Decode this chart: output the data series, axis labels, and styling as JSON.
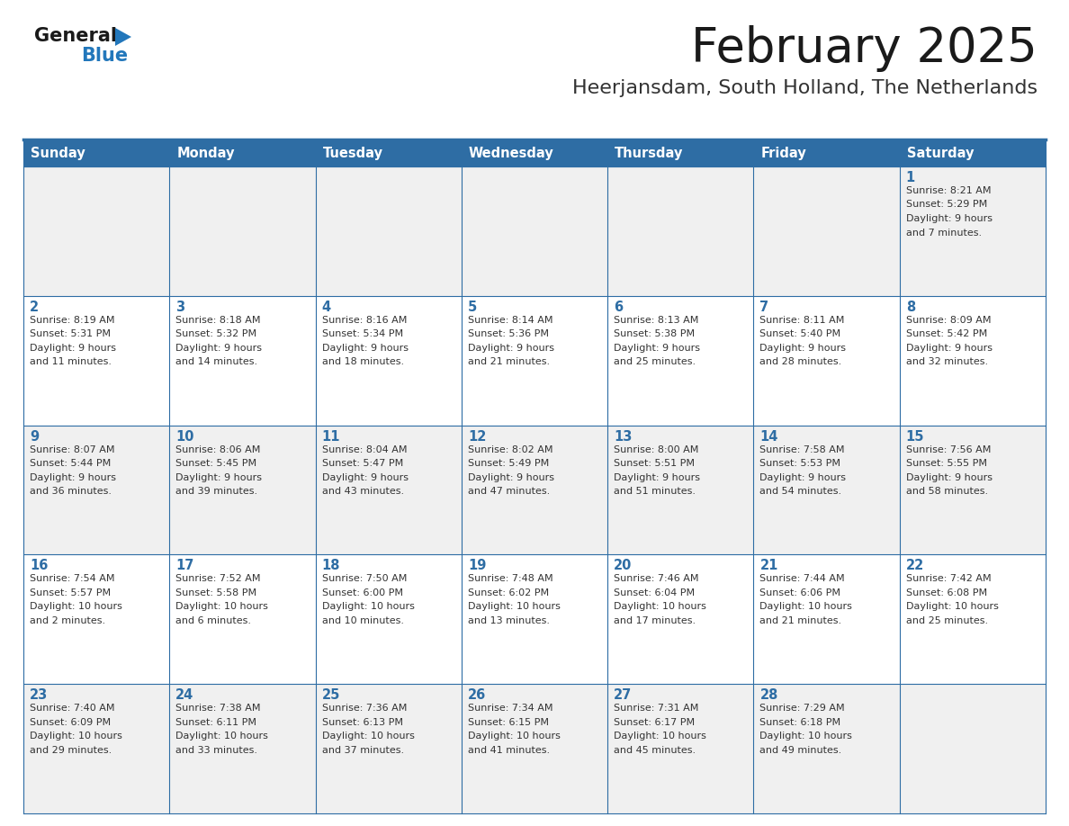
{
  "title": "February 2025",
  "subtitle": "Heerjansdam, South Holland, The Netherlands",
  "header_bg": "#2e6da4",
  "header_text": "#ffffff",
  "odd_row_bg": "#f0f0f0",
  "even_row_bg": "#ffffff",
  "border_color": "#2e6da4",
  "day_headers": [
    "Sunday",
    "Monday",
    "Tuesday",
    "Wednesday",
    "Thursday",
    "Friday",
    "Saturday"
  ],
  "title_color": "#1a1a1a",
  "subtitle_color": "#333333",
  "cell_text_color": "#333333",
  "day_num_color": "#2e6da4",
  "logo_general_color": "#1a1a1a",
  "logo_blue_color": "#2277bb",
  "calendar_data": [
    [
      {
        "day": null,
        "sunrise": null,
        "sunset": null,
        "daylight": null
      },
      {
        "day": null,
        "sunrise": null,
        "sunset": null,
        "daylight": null
      },
      {
        "day": null,
        "sunrise": null,
        "sunset": null,
        "daylight": null
      },
      {
        "day": null,
        "sunrise": null,
        "sunset": null,
        "daylight": null
      },
      {
        "day": null,
        "sunrise": null,
        "sunset": null,
        "daylight": null
      },
      {
        "day": null,
        "sunrise": null,
        "sunset": null,
        "daylight": null
      },
      {
        "day": 1,
        "sunrise": "8:21 AM",
        "sunset": "5:29 PM",
        "daylight": "9 hours and 7 minutes."
      }
    ],
    [
      {
        "day": 2,
        "sunrise": "8:19 AM",
        "sunset": "5:31 PM",
        "daylight": "9 hours and 11 minutes."
      },
      {
        "day": 3,
        "sunrise": "8:18 AM",
        "sunset": "5:32 PM",
        "daylight": "9 hours and 14 minutes."
      },
      {
        "day": 4,
        "sunrise": "8:16 AM",
        "sunset": "5:34 PM",
        "daylight": "9 hours and 18 minutes."
      },
      {
        "day": 5,
        "sunrise": "8:14 AM",
        "sunset": "5:36 PM",
        "daylight": "9 hours and 21 minutes."
      },
      {
        "day": 6,
        "sunrise": "8:13 AM",
        "sunset": "5:38 PM",
        "daylight": "9 hours and 25 minutes."
      },
      {
        "day": 7,
        "sunrise": "8:11 AM",
        "sunset": "5:40 PM",
        "daylight": "9 hours and 28 minutes."
      },
      {
        "day": 8,
        "sunrise": "8:09 AM",
        "sunset": "5:42 PM",
        "daylight": "9 hours and 32 minutes."
      }
    ],
    [
      {
        "day": 9,
        "sunrise": "8:07 AM",
        "sunset": "5:44 PM",
        "daylight": "9 hours and 36 minutes."
      },
      {
        "day": 10,
        "sunrise": "8:06 AM",
        "sunset": "5:45 PM",
        "daylight": "9 hours and 39 minutes."
      },
      {
        "day": 11,
        "sunrise": "8:04 AM",
        "sunset": "5:47 PM",
        "daylight": "9 hours and 43 minutes."
      },
      {
        "day": 12,
        "sunrise": "8:02 AM",
        "sunset": "5:49 PM",
        "daylight": "9 hours and 47 minutes."
      },
      {
        "day": 13,
        "sunrise": "8:00 AM",
        "sunset": "5:51 PM",
        "daylight": "9 hours and 51 minutes."
      },
      {
        "day": 14,
        "sunrise": "7:58 AM",
        "sunset": "5:53 PM",
        "daylight": "9 hours and 54 minutes."
      },
      {
        "day": 15,
        "sunrise": "7:56 AM",
        "sunset": "5:55 PM",
        "daylight": "9 hours and 58 minutes."
      }
    ],
    [
      {
        "day": 16,
        "sunrise": "7:54 AM",
        "sunset": "5:57 PM",
        "daylight": "10 hours and 2 minutes."
      },
      {
        "day": 17,
        "sunrise": "7:52 AM",
        "sunset": "5:58 PM",
        "daylight": "10 hours and 6 minutes."
      },
      {
        "day": 18,
        "sunrise": "7:50 AM",
        "sunset": "6:00 PM",
        "daylight": "10 hours and 10 minutes."
      },
      {
        "day": 19,
        "sunrise": "7:48 AM",
        "sunset": "6:02 PM",
        "daylight": "10 hours and 13 minutes."
      },
      {
        "day": 20,
        "sunrise": "7:46 AM",
        "sunset": "6:04 PM",
        "daylight": "10 hours and 17 minutes."
      },
      {
        "day": 21,
        "sunrise": "7:44 AM",
        "sunset": "6:06 PM",
        "daylight": "10 hours and 21 minutes."
      },
      {
        "day": 22,
        "sunrise": "7:42 AM",
        "sunset": "6:08 PM",
        "daylight": "10 hours and 25 minutes."
      }
    ],
    [
      {
        "day": 23,
        "sunrise": "7:40 AM",
        "sunset": "6:09 PM",
        "daylight": "10 hours and 29 minutes."
      },
      {
        "day": 24,
        "sunrise": "7:38 AM",
        "sunset": "6:11 PM",
        "daylight": "10 hours and 33 minutes."
      },
      {
        "day": 25,
        "sunrise": "7:36 AM",
        "sunset": "6:13 PM",
        "daylight": "10 hours and 37 minutes."
      },
      {
        "day": 26,
        "sunrise": "7:34 AM",
        "sunset": "6:15 PM",
        "daylight": "10 hours and 41 minutes."
      },
      {
        "day": 27,
        "sunrise": "7:31 AM",
        "sunset": "6:17 PM",
        "daylight": "10 hours and 45 minutes."
      },
      {
        "day": 28,
        "sunrise": "7:29 AM",
        "sunset": "6:18 PM",
        "daylight": "10 hours and 49 minutes."
      },
      {
        "day": null,
        "sunrise": null,
        "sunset": null,
        "daylight": null
      }
    ]
  ]
}
